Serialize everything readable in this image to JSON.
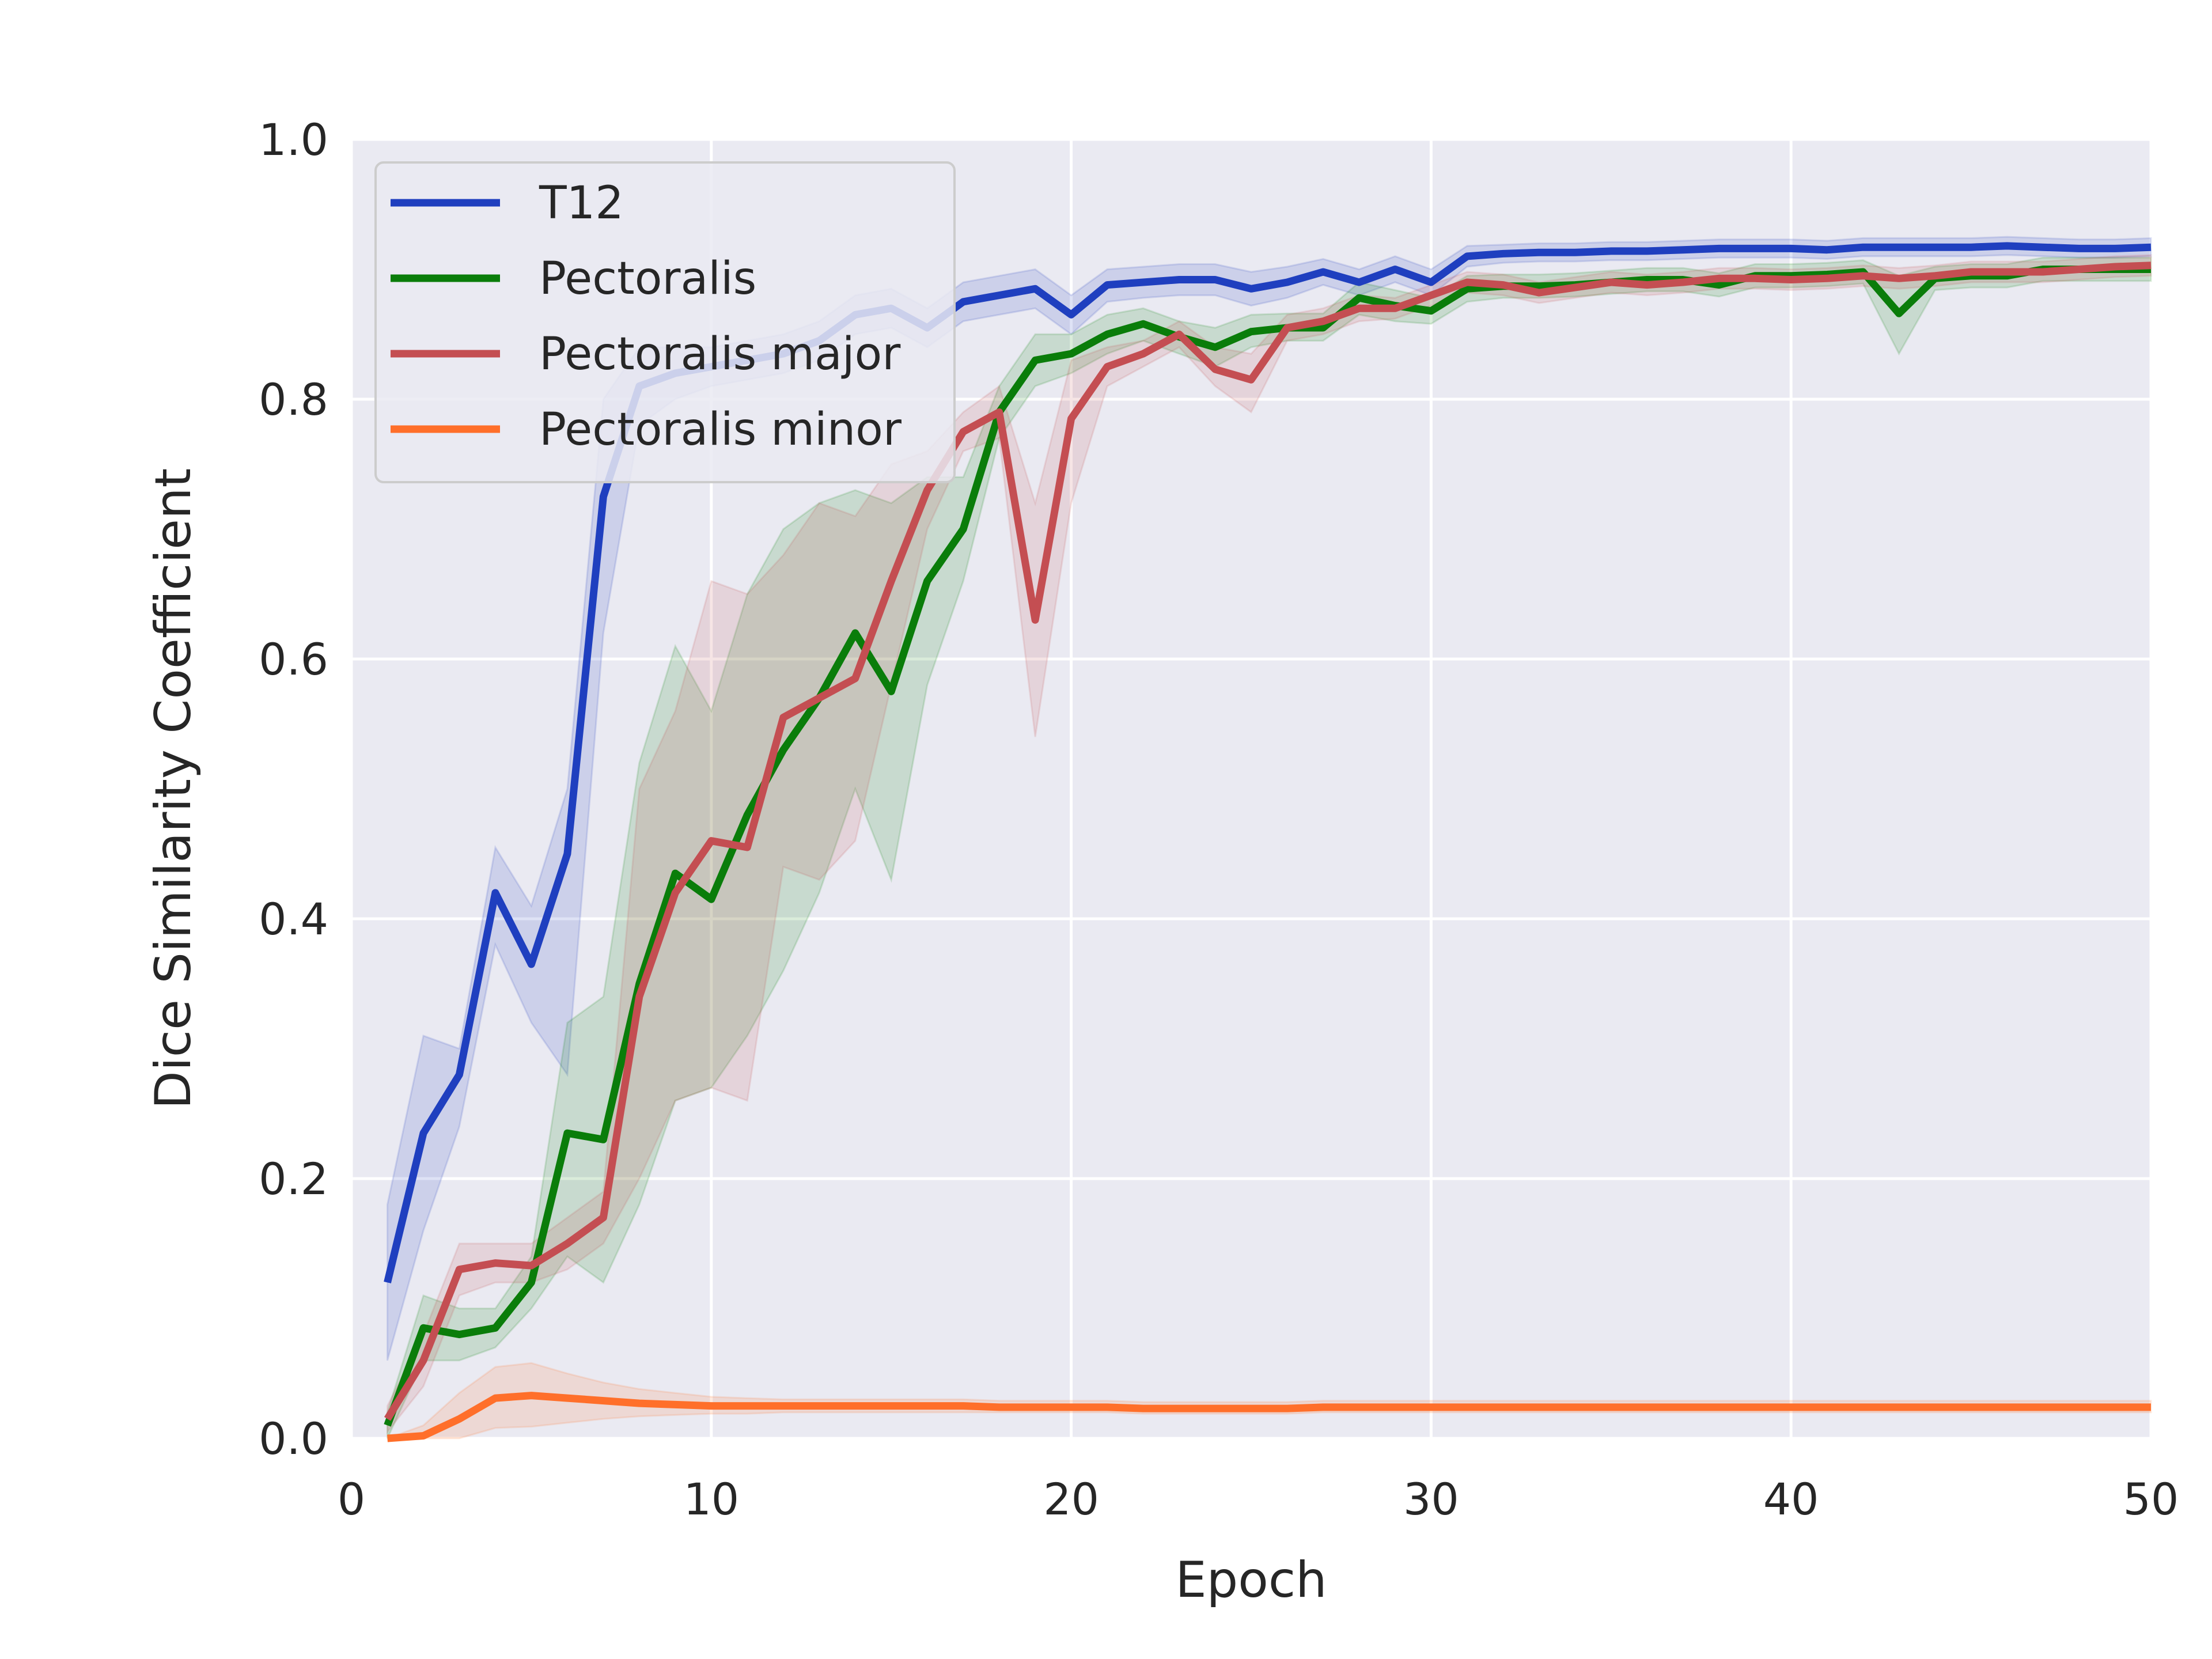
{
  "chart_data": {
    "type": "line",
    "title": "",
    "xlabel": "Epoch",
    "ylabel": "Dice Similarity Coefficient",
    "xlim": [
      0,
      50
    ],
    "ylim": [
      0.0,
      1.0
    ],
    "xticks": [
      0,
      10,
      20,
      30,
      40,
      50
    ],
    "xtick_labels": [
      "0",
      "10",
      "20",
      "30",
      "40",
      "50"
    ],
    "yticks": [
      0.0,
      0.2,
      0.4,
      0.6,
      0.8,
      1.0
    ],
    "ytick_labels": [
      "0.0",
      "0.2",
      "0.4",
      "0.6",
      "0.8",
      "1.0"
    ],
    "grid": true,
    "background": "#eaeaf2",
    "legend_position": "top-left",
    "x": [
      1,
      2,
      3,
      4,
      5,
      6,
      7,
      8,
      9,
      10,
      11,
      12,
      13,
      14,
      15,
      16,
      17,
      18,
      19,
      20,
      21,
      22,
      23,
      24,
      25,
      26,
      27,
      28,
      29,
      30,
      31,
      32,
      33,
      34,
      35,
      36,
      37,
      38,
      39,
      40,
      41,
      42,
      43,
      44,
      45,
      46,
      47,
      48,
      49,
      50
    ],
    "series": [
      {
        "name": "T12",
        "color": "#1f3fbf",
        "values": [
          0.12,
          0.235,
          0.28,
          0.42,
          0.365,
          0.45,
          0.725,
          0.81,
          0.82,
          0.825,
          0.83,
          0.835,
          0.845,
          0.865,
          0.87,
          0.855,
          0.875,
          0.88,
          0.885,
          0.865,
          0.888,
          0.89,
          0.892,
          0.892,
          0.885,
          0.89,
          0.898,
          0.89,
          0.9,
          0.89,
          0.91,
          0.912,
          0.913,
          0.913,
          0.914,
          0.914,
          0.915,
          0.916,
          0.916,
          0.916,
          0.915,
          0.917,
          0.917,
          0.917,
          0.917,
          0.918,
          0.917,
          0.916,
          0.916,
          0.917
        ],
        "lower": [
          0.06,
          0.16,
          0.24,
          0.38,
          0.32,
          0.28,
          0.62,
          0.78,
          0.8,
          0.81,
          0.815,
          0.82,
          0.83,
          0.85,
          0.855,
          0.84,
          0.86,
          0.865,
          0.87,
          0.85,
          0.875,
          0.878,
          0.88,
          0.88,
          0.872,
          0.878,
          0.888,
          0.88,
          0.89,
          0.88,
          0.902,
          0.905,
          0.906,
          0.906,
          0.907,
          0.907,
          0.908,
          0.909,
          0.909,
          0.909,
          0.908,
          0.91,
          0.91,
          0.91,
          0.91,
          0.911,
          0.91,
          0.909,
          0.909,
          0.91
        ],
        "upper": [
          0.18,
          0.31,
          0.3,
          0.455,
          0.41,
          0.5,
          0.8,
          0.84,
          0.84,
          0.84,
          0.845,
          0.85,
          0.86,
          0.88,
          0.885,
          0.87,
          0.89,
          0.895,
          0.9,
          0.88,
          0.9,
          0.902,
          0.904,
          0.904,
          0.898,
          0.902,
          0.908,
          0.9,
          0.91,
          0.9,
          0.918,
          0.919,
          0.92,
          0.92,
          0.921,
          0.921,
          0.922,
          0.923,
          0.923,
          0.923,
          0.922,
          0.924,
          0.924,
          0.924,
          0.924,
          0.925,
          0.924,
          0.923,
          0.923,
          0.924
        ]
      },
      {
        "name": "Pectoralis",
        "color": "#0a7d0a",
        "values": [
          0.01,
          0.085,
          0.08,
          0.085,
          0.12,
          0.235,
          0.23,
          0.35,
          0.435,
          0.415,
          0.48,
          0.53,
          0.57,
          0.62,
          0.575,
          0.66,
          0.7,
          0.79,
          0.83,
          0.835,
          0.85,
          0.858,
          0.848,
          0.84,
          0.852,
          0.855,
          0.855,
          0.878,
          0.872,
          0.868,
          0.885,
          0.887,
          0.887,
          0.888,
          0.89,
          0.892,
          0.892,
          0.888,
          0.895,
          0.895,
          0.896,
          0.898,
          0.866,
          0.893,
          0.895,
          0.895,
          0.9,
          0.9,
          0.9,
          0.9
        ],
        "lower": [
          0.0,
          0.06,
          0.06,
          0.07,
          0.1,
          0.14,
          0.12,
          0.18,
          0.26,
          0.27,
          0.31,
          0.36,
          0.42,
          0.5,
          0.43,
          0.58,
          0.66,
          0.77,
          0.81,
          0.82,
          0.835,
          0.845,
          0.835,
          0.825,
          0.84,
          0.845,
          0.845,
          0.865,
          0.86,
          0.858,
          0.875,
          0.878,
          0.878,
          0.879,
          0.881,
          0.883,
          0.883,
          0.879,
          0.886,
          0.886,
          0.887,
          0.889,
          0.835,
          0.884,
          0.886,
          0.886,
          0.891,
          0.891,
          0.891,
          0.891
        ],
        "upper": [
          0.02,
          0.11,
          0.1,
          0.1,
          0.14,
          0.32,
          0.34,
          0.52,
          0.61,
          0.56,
          0.65,
          0.7,
          0.72,
          0.73,
          0.72,
          0.74,
          0.74,
          0.81,
          0.85,
          0.85,
          0.865,
          0.87,
          0.86,
          0.855,
          0.865,
          0.866,
          0.866,
          0.89,
          0.884,
          0.878,
          0.895,
          0.896,
          0.896,
          0.897,
          0.899,
          0.901,
          0.901,
          0.897,
          0.904,
          0.904,
          0.905,
          0.907,
          0.895,
          0.902,
          0.904,
          0.904,
          0.909,
          0.909,
          0.909,
          0.909
        ]
      },
      {
        "name": "Pectoralis major",
        "color": "#c44e52",
        "values": [
          0.015,
          0.06,
          0.13,
          0.135,
          0.133,
          0.15,
          0.17,
          0.34,
          0.42,
          0.46,
          0.455,
          0.555,
          0.57,
          0.585,
          0.66,
          0.73,
          0.775,
          0.79,
          0.63,
          0.785,
          0.825,
          0.835,
          0.85,
          0.823,
          0.815,
          0.855,
          0.86,
          0.87,
          0.87,
          0.88,
          0.89,
          0.888,
          0.882,
          0.886,
          0.89,
          0.888,
          0.89,
          0.893,
          0.893,
          0.892,
          0.893,
          0.895,
          0.893,
          0.895,
          0.898,
          0.898,
          0.898,
          0.9,
          0.902,
          0.903
        ],
        "lower": [
          0.005,
          0.04,
          0.11,
          0.12,
          0.12,
          0.13,
          0.15,
          0.2,
          0.26,
          0.27,
          0.26,
          0.44,
          0.43,
          0.46,
          0.58,
          0.7,
          0.76,
          0.77,
          0.54,
          0.72,
          0.81,
          0.825,
          0.84,
          0.81,
          0.79,
          0.845,
          0.85,
          0.86,
          0.862,
          0.872,
          0.882,
          0.88,
          0.874,
          0.878,
          0.882,
          0.88,
          0.882,
          0.885,
          0.885,
          0.884,
          0.885,
          0.887,
          0.885,
          0.887,
          0.89,
          0.89,
          0.89,
          0.892,
          0.894,
          0.895
        ],
        "upper": [
          0.025,
          0.08,
          0.15,
          0.15,
          0.15,
          0.17,
          0.19,
          0.5,
          0.56,
          0.66,
          0.65,
          0.68,
          0.72,
          0.71,
          0.75,
          0.76,
          0.79,
          0.81,
          0.72,
          0.83,
          0.84,
          0.845,
          0.86,
          0.84,
          0.835,
          0.865,
          0.87,
          0.88,
          0.878,
          0.888,
          0.898,
          0.896,
          0.89,
          0.894,
          0.898,
          0.896,
          0.898,
          0.901,
          0.901,
          0.9,
          0.901,
          0.903,
          0.901,
          0.903,
          0.906,
          0.906,
          0.906,
          0.908,
          0.91,
          0.911
        ]
      },
      {
        "name": "Pectoralis minor",
        "color": "#ff6f2a",
        "values": [
          0.0,
          0.002,
          0.015,
          0.031,
          0.033,
          0.031,
          0.029,
          0.027,
          0.026,
          0.025,
          0.025,
          0.025,
          0.025,
          0.025,
          0.025,
          0.025,
          0.025,
          0.024,
          0.024,
          0.024,
          0.024,
          0.023,
          0.023,
          0.023,
          0.023,
          0.023,
          0.024,
          0.024,
          0.024,
          0.024,
          0.024,
          0.024,
          0.024,
          0.024,
          0.024,
          0.024,
          0.024,
          0.024,
          0.024,
          0.024,
          0.024,
          0.024,
          0.024,
          0.024,
          0.024,
          0.024,
          0.024,
          0.024,
          0.024,
          0.024
        ],
        "lower": [
          0.0,
          0.0,
          0.0,
          0.008,
          0.009,
          0.012,
          0.015,
          0.017,
          0.018,
          0.019,
          0.019,
          0.02,
          0.02,
          0.02,
          0.02,
          0.02,
          0.02,
          0.02,
          0.02,
          0.02,
          0.02,
          0.019,
          0.019,
          0.019,
          0.019,
          0.019,
          0.02,
          0.02,
          0.02,
          0.02,
          0.02,
          0.02,
          0.02,
          0.02,
          0.02,
          0.02,
          0.02,
          0.02,
          0.02,
          0.02,
          0.02,
          0.02,
          0.02,
          0.02,
          0.02,
          0.02,
          0.02,
          0.02,
          0.02,
          0.02
        ],
        "upper": [
          0.0,
          0.01,
          0.035,
          0.055,
          0.058,
          0.05,
          0.043,
          0.038,
          0.035,
          0.032,
          0.031,
          0.03,
          0.03,
          0.03,
          0.03,
          0.03,
          0.03,
          0.029,
          0.029,
          0.029,
          0.029,
          0.028,
          0.028,
          0.028,
          0.028,
          0.028,
          0.029,
          0.029,
          0.029,
          0.029,
          0.029,
          0.029,
          0.029,
          0.029,
          0.029,
          0.029,
          0.029,
          0.029,
          0.029,
          0.029,
          0.029,
          0.029,
          0.029,
          0.029,
          0.029,
          0.029,
          0.029,
          0.029,
          0.029,
          0.029
        ]
      }
    ]
  }
}
